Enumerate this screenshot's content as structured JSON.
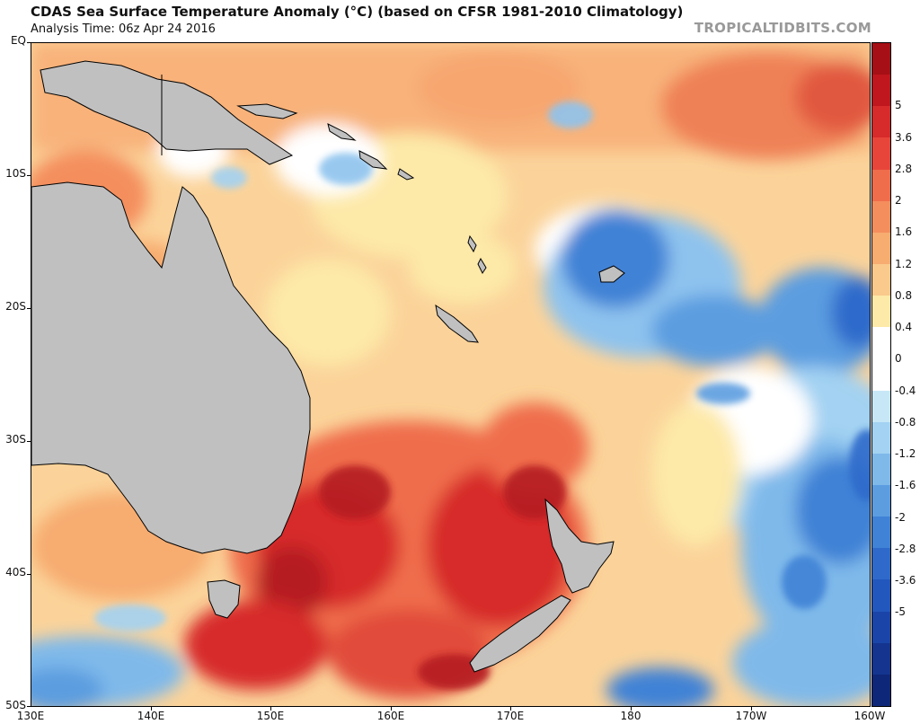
{
  "header": {
    "title": "CDAS Sea Surface Temperature Anomaly (°C) (based on CFSR 1981-2010 Climatology)",
    "analysis_time": "Analysis Time: 06z Apr 24 2016",
    "credit": "TROPICALTIDBITS.COM"
  },
  "map": {
    "region": "Southwest Pacific / Australia / New Zealand",
    "lat_labels": [
      "EQ",
      "10S",
      "20S",
      "30S",
      "40S",
      "50S"
    ],
    "lon_labels": [
      "130E",
      "140E",
      "150E",
      "160E",
      "170E",
      "180",
      "170W",
      "160W"
    ],
    "colors": {
      "land": "#c0c0c0",
      "coast": "#000000",
      "ocean_neutral": "#ffffff",
      "warm_light": "#fde9a8",
      "warm_mid": "#f7a66f",
      "warm_strong": "#e14b3a",
      "warm_extreme": "#b51d22",
      "cool_light": "#bfe3f5",
      "cool_mid": "#5c9de0",
      "cool_strong": "#1f5fc9"
    }
  },
  "colorbar": {
    "labels": [
      "5",
      "3.6",
      "2.8",
      "2",
      "1.6",
      "1.2",
      "0.8",
      "0.4",
      "0",
      "-0.4",
      "-0.8",
      "-1.2",
      "-1.6",
      "-2",
      "-2.8",
      "-3.6",
      "-5"
    ],
    "colors": [
      "#a50f15",
      "#c0161e",
      "#d72a2a",
      "#e8453a",
      "#ef6d4b",
      "#f48e5d",
      "#f7ac70",
      "#fac98c",
      "#fde9a8",
      "#ffffff",
      "#ffffff",
      "#c7e7f7",
      "#a3d2f2",
      "#7fb9ea",
      "#5c9de0",
      "#3f82d6",
      "#2f6acb",
      "#2257bd",
      "#1a44a8",
      "#14348f",
      "#0f2778"
    ]
  }
}
